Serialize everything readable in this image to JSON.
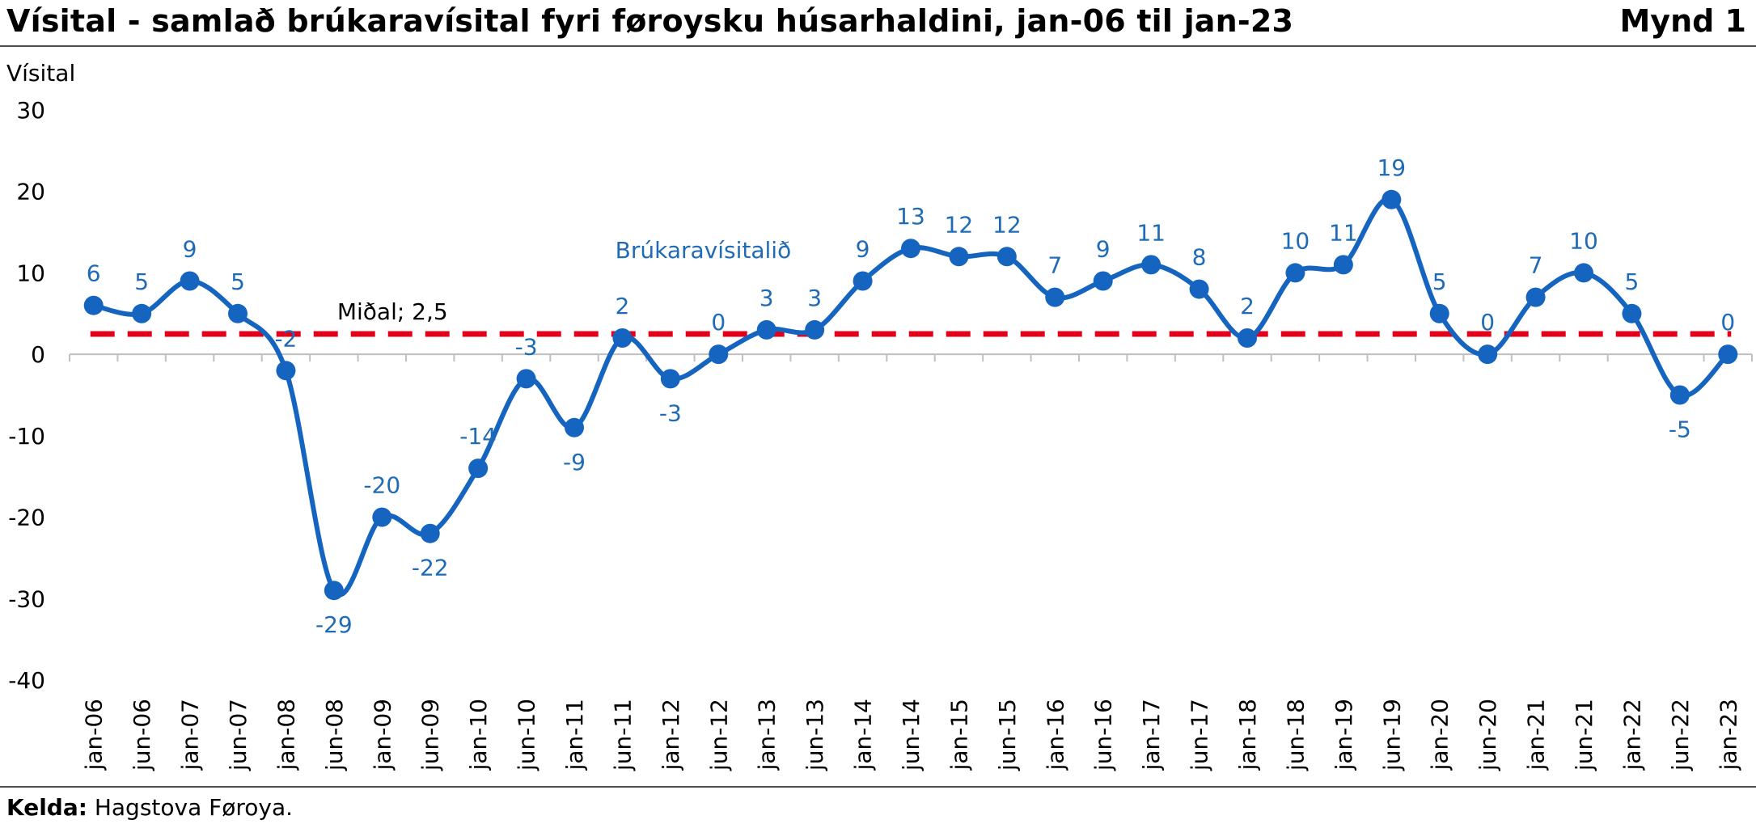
{
  "header": {
    "title": "Vísital - samlað brúkaravísital fyri føroysku húsarhaldini, jan-06 til jan-23",
    "figure_number": "Mynd 1"
  },
  "footer": {
    "source_label": "Kelda:",
    "source_text": " Hagstova Føroya."
  },
  "colors": {
    "series": "#1565c0",
    "data_labels": "#1f6bb5",
    "mean_line": "#e3001b",
    "axis": "#bfbfbf"
  },
  "chart_data": {
    "type": "line",
    "ylabel": "Vísital",
    "ylim": [
      -40,
      30
    ],
    "yticks": [
      30,
      20,
      10,
      0,
      -10,
      -20,
      -30,
      -40
    ],
    "categories": [
      "jan-06",
      "jun-06",
      "jan-07",
      "jun-07",
      "jan-08",
      "jun-08",
      "jan-09",
      "jun-09",
      "jan-10",
      "jun-10",
      "jan-11",
      "jun-11",
      "jan-12",
      "jun-12",
      "jan-13",
      "jun-13",
      "jan-14",
      "jun-14",
      "jan-15",
      "jun-15",
      "jan-16",
      "jun-16",
      "jan-17",
      "jun-17",
      "jan-18",
      "jun-18",
      "jan-19",
      "jun-19",
      "jan-20",
      "jun-20",
      "jan-21",
      "jun-21",
      "jan-22",
      "jun-22",
      "jan-23"
    ],
    "series": [
      {
        "name": "Brúkaravísitalið",
        "values": [
          6,
          5,
          9,
          5,
          -2,
          -29,
          -20,
          -22,
          -14,
          -3,
          -9,
          2,
          -3,
          0,
          3,
          3,
          9,
          13,
          12,
          12,
          7,
          9,
          11,
          8,
          2,
          10,
          11,
          19,
          5,
          0,
          7,
          10,
          5,
          -5,
          0
        ],
        "data_labels": [
          "6",
          "5",
          "9",
          "5",
          "-2",
          "-29",
          "-20",
          "-22",
          "-14",
          "-3",
          "-9",
          "2",
          "-3",
          "0",
          "3",
          "3",
          "9",
          "13",
          "12",
          "12",
          "7",
          "9",
          "11",
          "8",
          "2",
          "10",
          "11",
          "19",
          "5",
          "0",
          "7",
          "10",
          "5",
          "-5",
          "0"
        ],
        "smooth": true,
        "markers": true
      }
    ],
    "reference_line": {
      "label": "Miðal; 2,5",
      "value": 2.5,
      "style": "dashed"
    },
    "grid": false,
    "legend": "none"
  }
}
